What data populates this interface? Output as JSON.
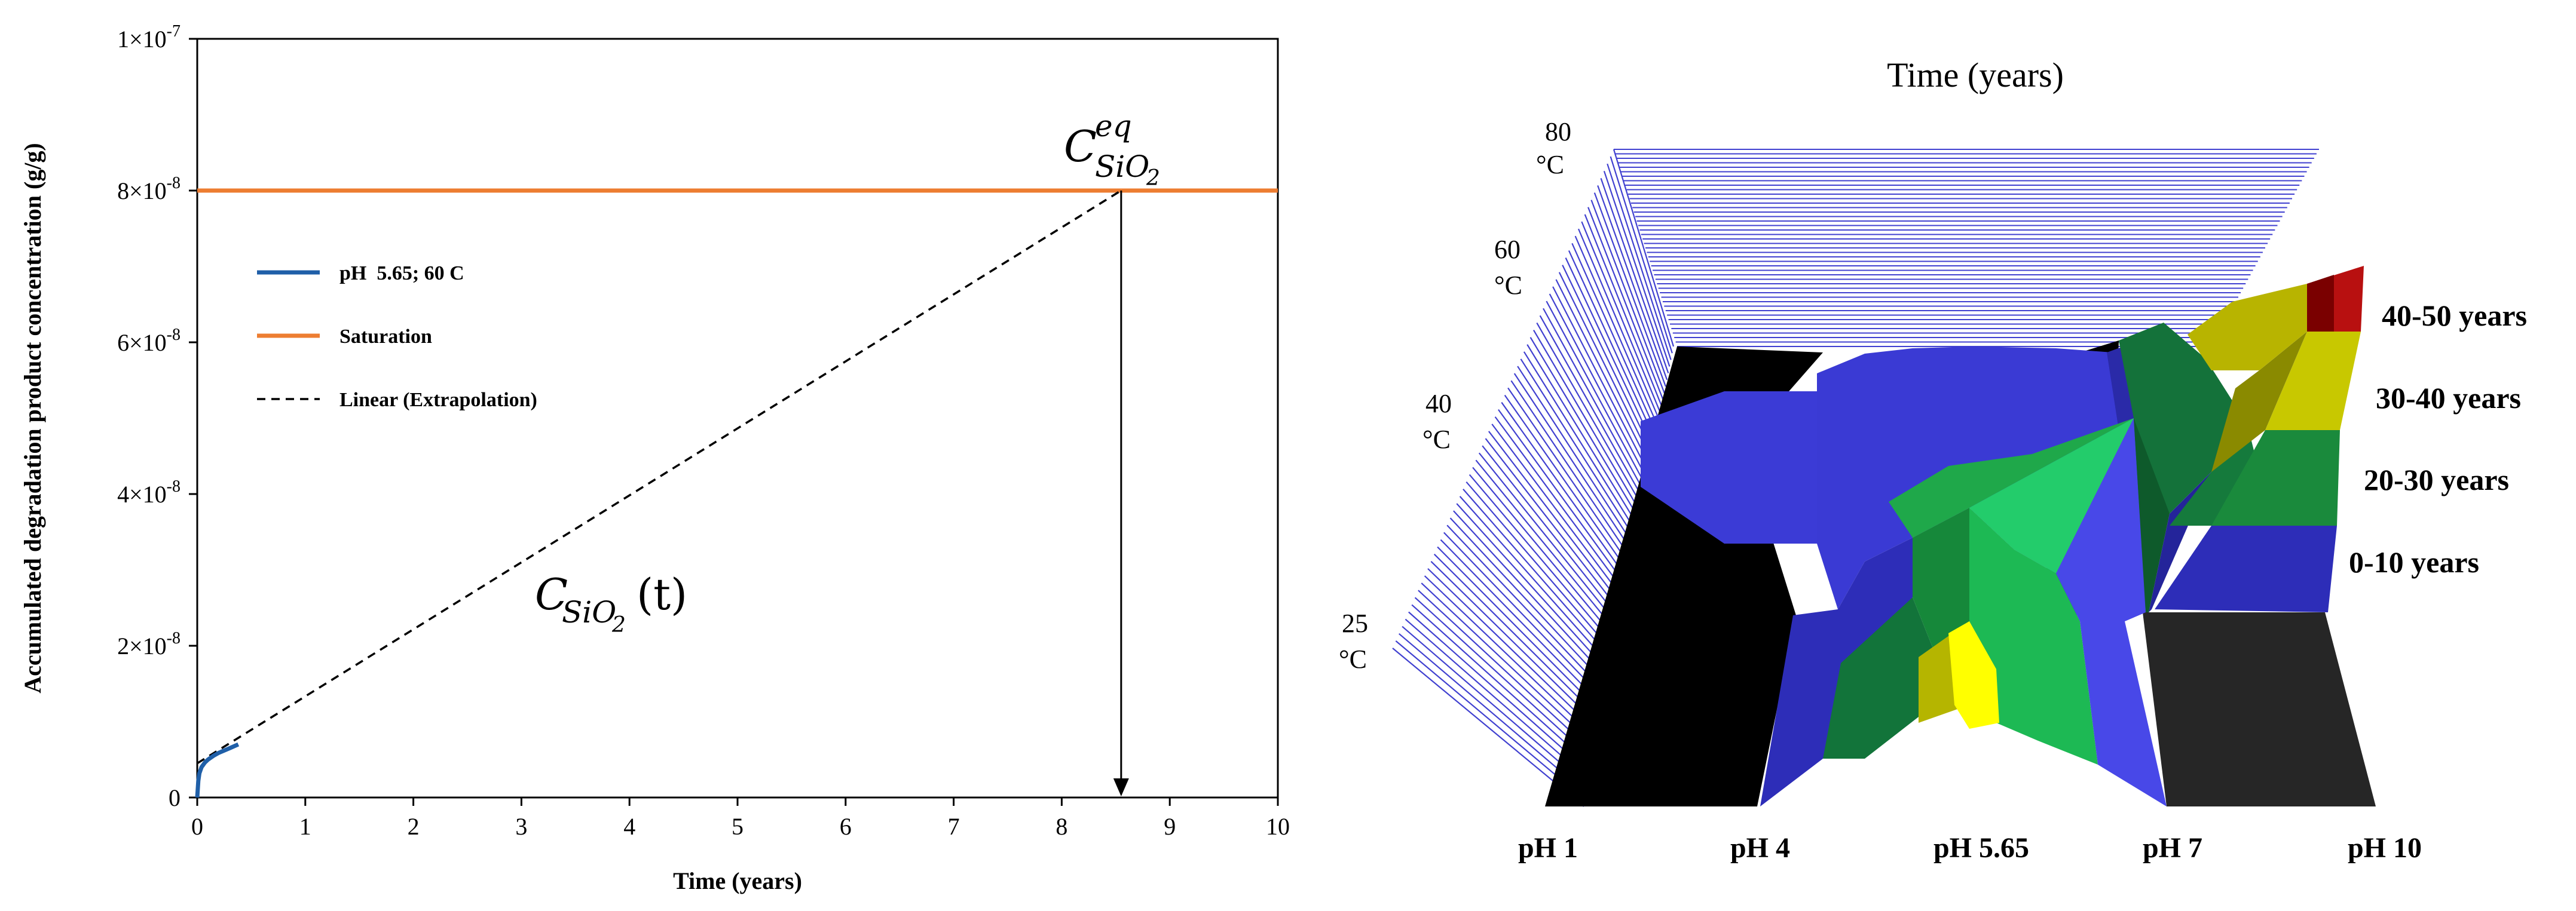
{
  "chart_data": [
    {
      "type": "line",
      "xlabel": "Time (years)",
      "ylabel": "Accumulated degradation product concentration (g/g)",
      "xlim": [
        0,
        10
      ],
      "ylim": [
        0,
        1e-07
      ],
      "x_ticks": [
        "0",
        "1",
        "2",
        "3",
        "4",
        "5",
        "6",
        "7",
        "8",
        "9",
        "10"
      ],
      "y_ticks": [
        {
          "mant": "",
          "exp": "",
          "plain": "0",
          "value": 0
        },
        {
          "mant": "2×10",
          "exp": "-8",
          "value": 2e-08
        },
        {
          "mant": "4×10",
          "exp": "-8",
          "value": 4e-08
        },
        {
          "mant": "6×10",
          "exp": "-8",
          "value": 6e-08
        },
        {
          "mant": "8×10",
          "exp": "-8",
          "value": 8e-08
        },
        {
          "mant": "1×10",
          "exp": "-7",
          "value": 1e-07
        }
      ],
      "grid": false,
      "legend_position": "upper-left",
      "series": [
        {
          "name": "pH  5.65; 60 C",
          "style": "solid",
          "color": "#1f5fa8",
          "x": [
            0,
            0.01,
            0.02,
            0.04,
            0.07,
            0.1,
            0.15,
            0.2,
            0.3,
            0.38
          ],
          "y": [
            0,
            2.2e-09,
            3.2e-09,
            4e-09,
            4.6e-09,
            5e-09,
            5.5e-09,
            5.9e-09,
            6.5e-09,
            7e-09
          ]
        },
        {
          "name": "Saturation",
          "style": "solid",
          "color": "#ed7d31",
          "x": [
            0,
            10
          ],
          "y": [
            8e-08,
            8e-08
          ]
        },
        {
          "name": "Linear (Extrapolation)",
          "style": "dashed",
          "color": "#000000",
          "x": [
            0,
            8.55
          ],
          "y": [
            4.5e-09,
            8e-08
          ]
        }
      ],
      "annotations": {
        "eq_label": {
          "base": "C",
          "sup": "eq",
          "sub": "SiO",
          "subsub": "2"
        },
        "curve_label": {
          "base": "C",
          "sub": "SiO",
          "subsub": "2",
          "arg": "(t)"
        },
        "arrow_x": 8.55
      }
    },
    {
      "type": "heatmap",
      "title": "Time (years)",
      "x_categories": [
        "pH 1",
        "pH 4",
        "pH 5.65",
        "pH 7",
        "pH 10"
      ],
      "y_categories": [
        "25 °C",
        "40 °C",
        "60 °C",
        "80 °C"
      ],
      "legend": [
        {
          "label": "40-50 years",
          "color": "#b8b400"
        },
        {
          "label": "30-40 years",
          "color": "#c8c800"
        },
        {
          "label": "20-30 years",
          "color": "#1a8a3c"
        },
        {
          "label": "0-10 years",
          "color": "#2d2db8"
        }
      ]
    }
  ]
}
